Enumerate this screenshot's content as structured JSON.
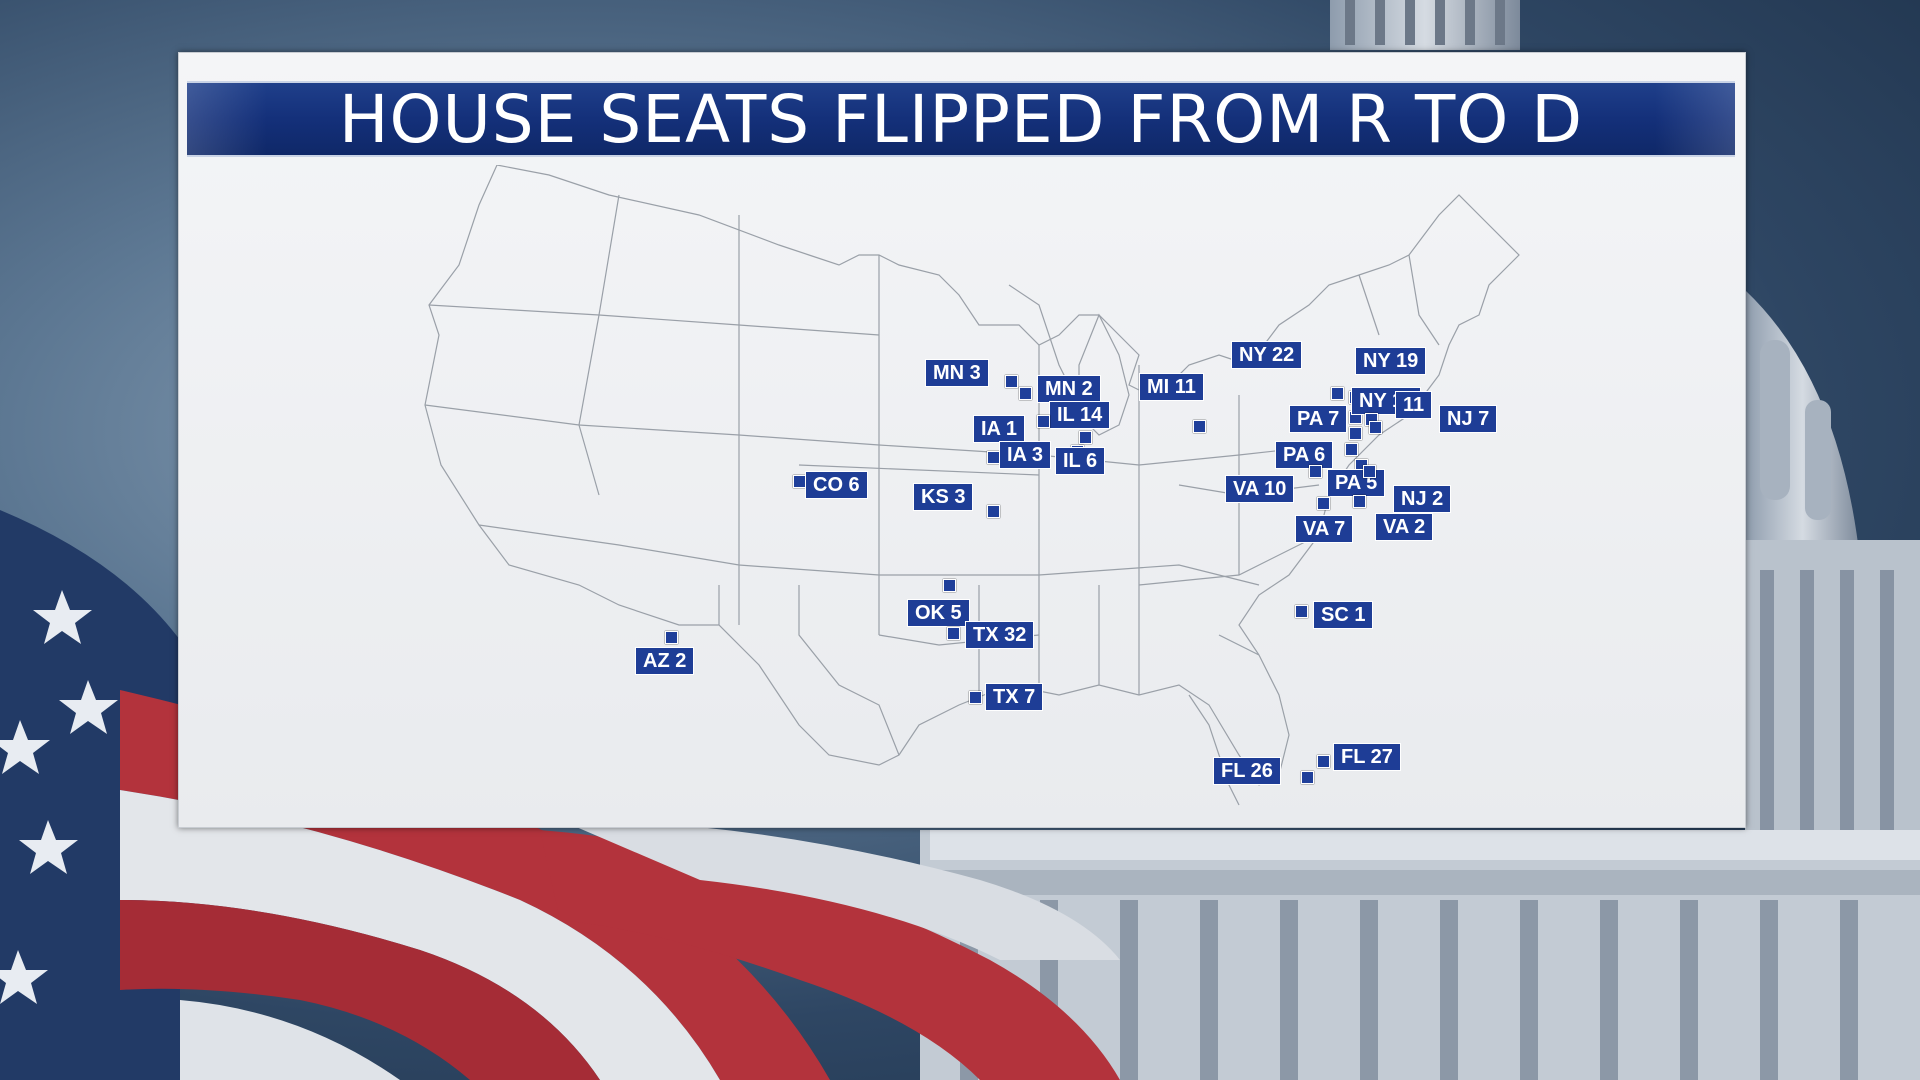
{
  "title": "HOUSE SEATS FLIPPED FROM R TO D",
  "colors": {
    "accent": "#1e3d96",
    "panel": "#eef0f3",
    "map_line": "#9aa0a8"
  },
  "districts": [
    {
      "id": "mn3",
      "label": "MN 3"
    },
    {
      "id": "mn2",
      "label": "MN 2"
    },
    {
      "id": "mi11",
      "label": "MI 11"
    },
    {
      "id": "ny22",
      "label": "NY 22"
    },
    {
      "id": "ny19",
      "label": "NY 19"
    },
    {
      "id": "ny11",
      "label": "NY 11"
    },
    {
      "id": "nj11",
      "label": "11"
    },
    {
      "id": "nj7",
      "label": "NJ 7"
    },
    {
      "id": "pa7",
      "label": "PA 7"
    },
    {
      "id": "il14",
      "label": "IL 14"
    },
    {
      "id": "ia1",
      "label": "IA 1"
    },
    {
      "id": "ia3",
      "label": "IA 3"
    },
    {
      "id": "il6",
      "label": "IL 6"
    },
    {
      "id": "pa6",
      "label": "PA 6"
    },
    {
      "id": "co6",
      "label": "CO 6"
    },
    {
      "id": "ks3",
      "label": "KS 3"
    },
    {
      "id": "va10",
      "label": "VA 10"
    },
    {
      "id": "pa5",
      "label": "PA 5"
    },
    {
      "id": "nj2",
      "label": "NJ 2"
    },
    {
      "id": "va7",
      "label": "VA 7"
    },
    {
      "id": "va2",
      "label": "VA 2"
    },
    {
      "id": "ok5",
      "label": "OK 5"
    },
    {
      "id": "sc1",
      "label": "SC 1"
    },
    {
      "id": "tx32",
      "label": "TX 32"
    },
    {
      "id": "az2",
      "label": "AZ 2"
    },
    {
      "id": "tx7",
      "label": "TX 7"
    },
    {
      "id": "fl27",
      "label": "FL 27"
    },
    {
      "id": "fl26",
      "label": "FL 26"
    }
  ]
}
